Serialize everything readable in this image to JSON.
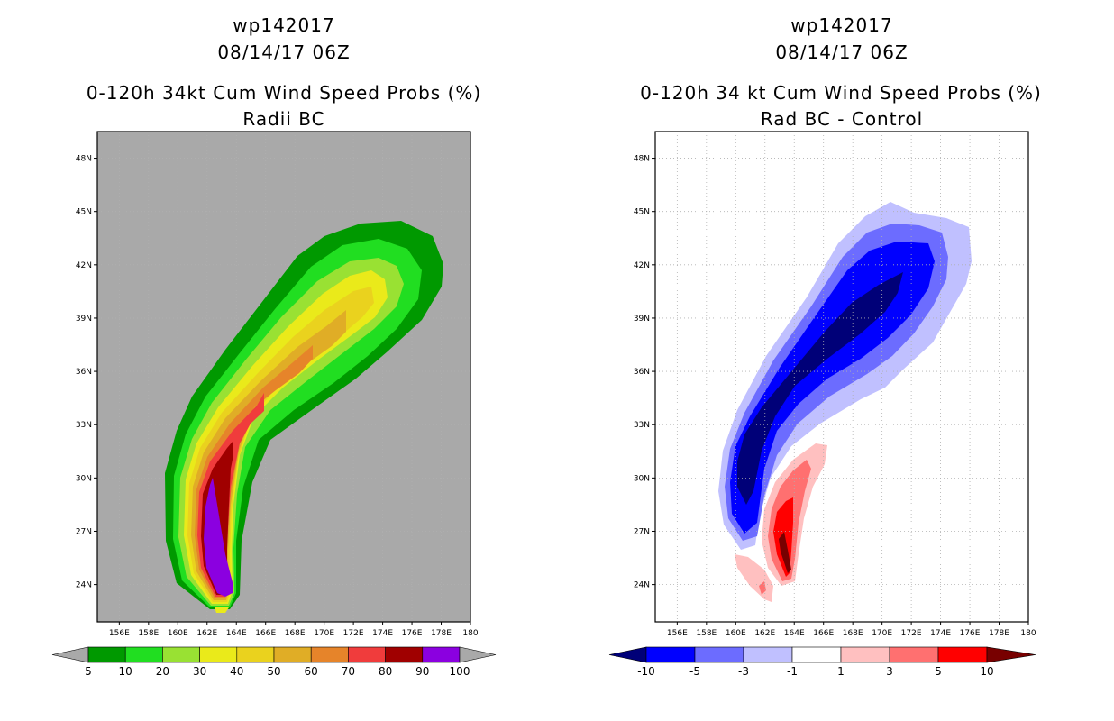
{
  "left": {
    "title_line1": "wp142017",
    "title_line2": "08/14/17 06Z",
    "title_line3": "0-120h 34kt Cum Wind Speed Probs (%)",
    "title_line4": "Radii BC",
    "colorbar_labels": [
      "5",
      "10",
      "20",
      "30",
      "40",
      "50",
      "60",
      "70",
      "80",
      "90",
      "100"
    ],
    "colors": [
      "#009900",
      "#21de21",
      "#99e133",
      "#eaea1a",
      "#ead21e",
      "#e0ad26",
      "#e6842a",
      "#f03c3c",
      "#a00000",
      "#8b00e0"
    ]
  },
  "right": {
    "title_line1": "wp142017",
    "title_line2": "08/14/17 06Z",
    "title_line3": "0-120h 34 kt Cum Wind Speed Probs (%)",
    "title_line4": "Rad BC - Control",
    "colorbar_labels": [
      "-10",
      "-5",
      "-3",
      "-1",
      "1",
      "3",
      "5",
      "10"
    ],
    "colors": [
      "#000078",
      "#0000ff",
      "#6c6cff",
      "#c0c0ff",
      "#ffffff",
      "#ffc0c0",
      "#ff7070",
      "#ff0000",
      "#780000"
    ]
  },
  "axes": {
    "lat_labels": [
      "48N",
      "45N",
      "42N",
      "39N",
      "36N",
      "33N",
      "30N",
      "27N",
      "24N"
    ],
    "lon_labels": [
      "156E",
      "158E",
      "160E",
      "162E",
      "164E",
      "166E",
      "168E",
      "170E",
      "172E",
      "174E",
      "176E",
      "178E",
      "180"
    ],
    "lat_values": [
      48,
      45,
      42,
      39,
      36,
      33,
      30,
      27,
      24
    ],
    "lon_values": [
      156,
      158,
      160,
      162,
      164,
      166,
      168,
      170,
      172,
      174,
      176,
      178,
      180
    ],
    "lat_range": [
      21.9,
      49.5
    ],
    "lon_range": [
      154.5,
      180
    ]
  }
}
